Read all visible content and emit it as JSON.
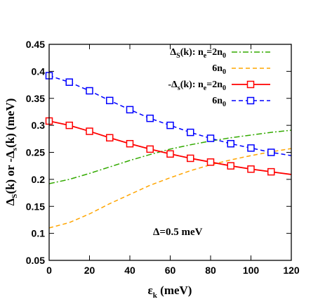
{
  "chart_data": {
    "type": "line",
    "xlabel": "ε_k (meV)",
    "ylabel": "Δ_S(k) or -Δ_s(k) (meV)",
    "xlim": [
      0,
      120
    ],
    "ylim": [
      0.05,
      0.45
    ],
    "x_ticks": [
      "0",
      "20",
      "40",
      "60",
      "80",
      "100",
      "120"
    ],
    "y_ticks": [
      "0.05",
      "0.1",
      "0.15",
      "0.2",
      "0.25",
      "0.3",
      "0.35",
      "0.4",
      "0.45"
    ],
    "grid": false,
    "legend_position": "top-right",
    "annotation": "Δ=0.5 meV",
    "series": [
      {
        "name": "Δ_S(k): n_e=2n_0",
        "color": "#33aa00",
        "line_style": "dash-dot",
        "marker": "none",
        "x": [
          0,
          10,
          20,
          30,
          40,
          50,
          60,
          70,
          80,
          90,
          100,
          110,
          120
        ],
        "y": [
          0.192,
          0.2,
          0.211,
          0.223,
          0.235,
          0.246,
          0.256,
          0.264,
          0.271,
          0.277,
          0.282,
          0.287,
          0.291
        ]
      },
      {
        "name": "6n_0",
        "color": "#ffa500",
        "line_style": "dashed",
        "marker": "none",
        "x": [
          0,
          10,
          20,
          30,
          40,
          50,
          60,
          70,
          80,
          90,
          100,
          110,
          120
        ],
        "y": [
          0.11,
          0.12,
          0.136,
          0.155,
          0.172,
          0.189,
          0.203,
          0.216,
          0.227,
          0.236,
          0.244,
          0.251,
          0.257
        ]
      },
      {
        "name": "-Δ_s(k): n_e=2n_0",
        "color": "#ff0000",
        "line_style": "solid",
        "marker": "square",
        "x": [
          0,
          10,
          20,
          30,
          40,
          50,
          60,
          70,
          80,
          90,
          100,
          110,
          120
        ],
        "y": [
          0.308,
          0.3,
          0.289,
          0.277,
          0.266,
          0.256,
          0.247,
          0.239,
          0.232,
          0.225,
          0.219,
          0.214,
          0.209
        ]
      },
      {
        "name": "6n_0",
        "color": "#0000ff",
        "line_style": "dashed",
        "marker": "square",
        "x": [
          0,
          10,
          20,
          30,
          40,
          50,
          60,
          70,
          80,
          90,
          100,
          110,
          120
        ],
        "y": [
          0.392,
          0.38,
          0.364,
          0.346,
          0.329,
          0.313,
          0.3,
          0.287,
          0.276,
          0.266,
          0.258,
          0.25,
          0.244
        ]
      }
    ],
    "marker_x": [
      0,
      10,
      20,
      30,
      40,
      50,
      60,
      70,
      80,
      90,
      100,
      110
    ]
  }
}
